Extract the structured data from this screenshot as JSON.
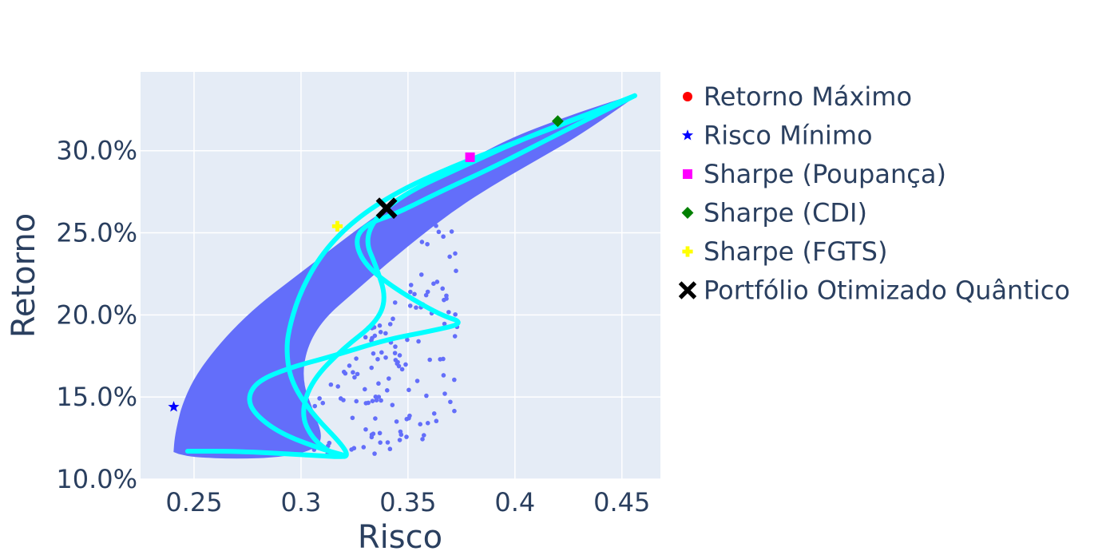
{
  "chart_data": {
    "type": "scatter",
    "xlabel": "Risco",
    "ylabel": "Retorno",
    "xlim": [
      0.225,
      0.468
    ],
    "ylim": [
      0.1,
      0.348
    ],
    "x_ticks": [
      {
        "value": 0.25,
        "label": "0.25"
      },
      {
        "value": 0.3,
        "label": "0.3"
      },
      {
        "value": 0.35,
        "label": "0.35"
      },
      {
        "value": 0.4,
        "label": "0.4"
      },
      {
        "value": 0.45,
        "label": "0.45"
      }
    ],
    "y_ticks": [
      {
        "value": 0.1,
        "label": "10.0%"
      },
      {
        "value": 0.15,
        "label": "15.0%"
      },
      {
        "value": 0.2,
        "label": "20.0%"
      },
      {
        "value": 0.25,
        "label": "25.0%"
      },
      {
        "value": 0.3,
        "label": "30.0%"
      }
    ],
    "grid": true,
    "legend_position": "right",
    "colors": {
      "plot_background": "#e5ecf6",
      "grid": "#ffffff",
      "cloud": "#636efa",
      "frontier": "#00ffff"
    },
    "cloud_region": {
      "upper_boundary": [
        [
          0.241,
          0.117
        ],
        [
          0.2415,
          0.125
        ],
        [
          0.243,
          0.135
        ],
        [
          0.245,
          0.145
        ],
        [
          0.25,
          0.16
        ],
        [
          0.258,
          0.175
        ],
        [
          0.268,
          0.19
        ],
        [
          0.28,
          0.205
        ],
        [
          0.295,
          0.22
        ],
        [
          0.31,
          0.235
        ],
        [
          0.325,
          0.25
        ],
        [
          0.34,
          0.264
        ],
        [
          0.355,
          0.276
        ],
        [
          0.37,
          0.288
        ],
        [
          0.385,
          0.298
        ],
        [
          0.4,
          0.308
        ],
        [
          0.42,
          0.318
        ],
        [
          0.44,
          0.327
        ],
        [
          0.456,
          0.3335
        ]
      ],
      "lower_boundary": [
        [
          0.456,
          0.3335
        ],
        [
          0.43,
          0.31
        ],
        [
          0.41,
          0.295
        ],
        [
          0.39,
          0.28
        ],
        [
          0.372,
          0.265
        ],
        [
          0.355,
          0.248
        ],
        [
          0.34,
          0.232
        ],
        [
          0.325,
          0.215
        ],
        [
          0.31,
          0.198
        ],
        [
          0.302,
          0.18
        ],
        [
          0.3,
          0.16
        ],
        [
          0.305,
          0.142
        ],
        [
          0.31,
          0.125
        ],
        [
          0.305,
          0.118
        ],
        [
          0.29,
          0.114
        ],
        [
          0.27,
          0.113
        ],
        [
          0.25,
          0.114
        ],
        [
          0.243,
          0.116
        ]
      ],
      "interior_scatter_bounds": {
        "x": [
          0.3,
          0.375
        ],
        "y": [
          0.115,
          0.255
        ]
      }
    },
    "frontier_curves": [
      [
        [
          0.247,
          0.117
        ],
        [
          0.27,
          0.117
        ],
        [
          0.3,
          0.115
        ],
        [
          0.325,
          0.113
        ],
        [
          0.31,
          0.118
        ],
        [
          0.29,
          0.128
        ],
        [
          0.278,
          0.14
        ],
        [
          0.275,
          0.15
        ],
        [
          0.28,
          0.16
        ],
        [
          0.295,
          0.168
        ],
        [
          0.315,
          0.175
        ],
        [
          0.34,
          0.185
        ],
        [
          0.36,
          0.19
        ],
        [
          0.377,
          0.195
        ],
        [
          0.365,
          0.2
        ],
        [
          0.345,
          0.215
        ],
        [
          0.33,
          0.23
        ],
        [
          0.325,
          0.245
        ],
        [
          0.33,
          0.255
        ],
        [
          0.345,
          0.262
        ],
        [
          0.365,
          0.275
        ],
        [
          0.39,
          0.29
        ],
        [
          0.42,
          0.31
        ],
        [
          0.456,
          0.3335
        ]
      ],
      [
        [
          0.456,
          0.3335
        ],
        [
          0.43,
          0.32
        ],
        [
          0.4,
          0.305
        ],
        [
          0.37,
          0.29
        ],
        [
          0.345,
          0.275
        ],
        [
          0.325,
          0.258
        ],
        [
          0.31,
          0.238
        ],
        [
          0.3,
          0.215
        ],
        [
          0.295,
          0.195
        ],
        [
          0.293,
          0.18
        ],
        [
          0.295,
          0.16
        ],
        [
          0.305,
          0.14
        ],
        [
          0.32,
          0.12
        ],
        [
          0.322,
          0.113
        ],
        [
          0.315,
          0.115
        ],
        [
          0.305,
          0.125
        ],
        [
          0.3,
          0.14
        ],
        [
          0.305,
          0.16
        ],
        [
          0.32,
          0.18
        ],
        [
          0.335,
          0.195
        ],
        [
          0.34,
          0.21
        ],
        [
          0.335,
          0.23
        ],
        [
          0.33,
          0.245
        ],
        [
          0.335,
          0.26
        ],
        [
          0.35,
          0.275
        ],
        [
          0.375,
          0.29
        ],
        [
          0.4,
          0.305
        ],
        [
          0.425,
          0.318
        ],
        [
          0.45,
          0.33
        ]
      ]
    ],
    "special_points": [
      {
        "name": "Retorno Máximo",
        "x": null,
        "y": null,
        "color": "#ff0000",
        "symbol": "circle"
      },
      {
        "name": "Risco Mínimo",
        "x": 0.2405,
        "y": 0.144,
        "color": "#0000ff",
        "symbol": "star"
      },
      {
        "name": "Sharpe (Poupança)",
        "x": 0.379,
        "y": 0.296,
        "color": "#ff00ff",
        "symbol": "square"
      },
      {
        "name": "Sharpe (CDI)",
        "x": 0.42,
        "y": 0.318,
        "color": "#008000",
        "symbol": "diamond"
      },
      {
        "name": "Sharpe (FGTS)",
        "x": 0.317,
        "y": 0.254,
        "color": "#ffff00",
        "symbol": "cross"
      },
      {
        "name": "Portfólio Otimizado Quântico",
        "x": 0.34,
        "y": 0.265,
        "color": "#000000",
        "symbol": "x"
      }
    ]
  }
}
